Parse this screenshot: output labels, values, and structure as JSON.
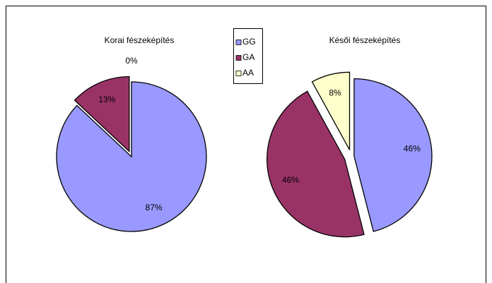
{
  "chart_data": [
    {
      "type": "pie",
      "title": "Korai fészeképítés",
      "categories": [
        "GG",
        "GA",
        "AA"
      ],
      "values": [
        87,
        13,
        0
      ],
      "value_labels": [
        "87%",
        "13%",
        "0%"
      ],
      "colors": [
        "#9999ff",
        "#993366",
        "#ffffcc"
      ],
      "legend": "top-center"
    },
    {
      "type": "pie",
      "title": "Késői fészeképítés",
      "categories": [
        "GG",
        "GA",
        "AA"
      ],
      "values": [
        46,
        46,
        8
      ],
      "value_labels": [
        "46%",
        "46%",
        "8%"
      ],
      "colors": [
        "#9999ff",
        "#993366",
        "#ffffcc"
      ]
    }
  ]
}
